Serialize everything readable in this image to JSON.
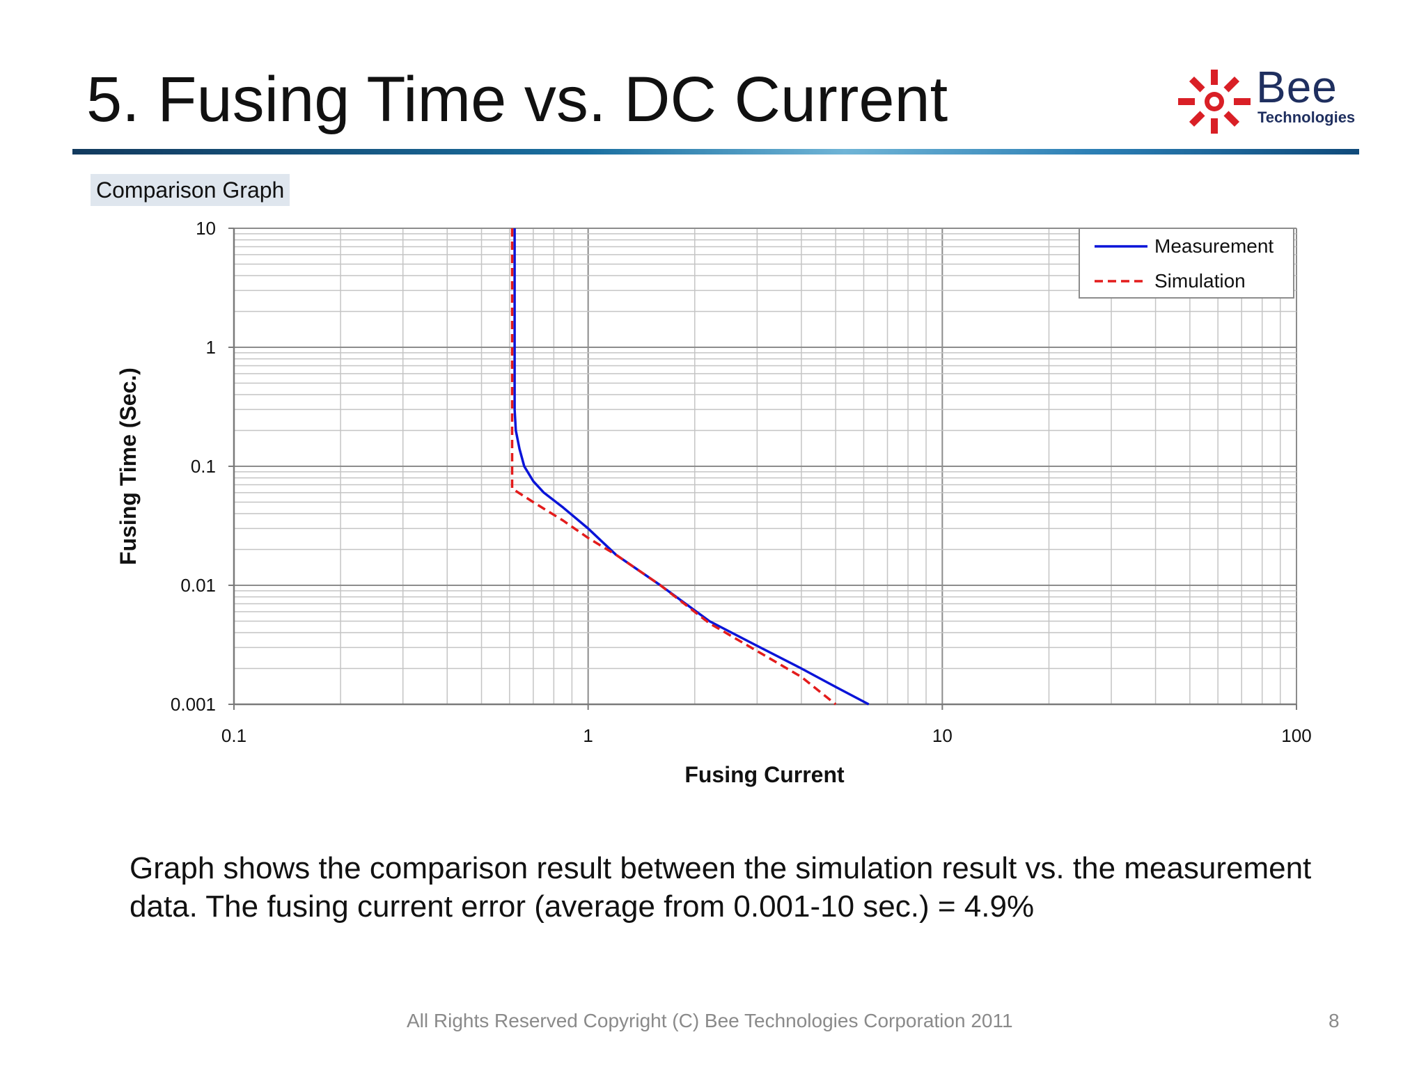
{
  "slide": {
    "title": "5. Fusing Time vs. DC Current",
    "section_label": "Comparison Graph",
    "description": "Graph shows the comparison result between the simulation result vs. the measurement data. The fusing current error (average from 0.001-10 sec.) = 4.9%",
    "footer": "All Rights Reserved Copyright (C) Bee Technologies Corporation 2011",
    "page_number": "8"
  },
  "logo": {
    "word": "Bee",
    "subtitle": "Technologies",
    "icon": "sunburst-icon",
    "colors": {
      "mark": "#d91f26",
      "text": "#1f2f5f"
    }
  },
  "chart_data": {
    "type": "line",
    "title": "",
    "xlabel": "Fusing Current",
    "ylabel": "Fusing Time (Sec.)",
    "x_scale": "log",
    "y_scale": "log",
    "xlim": [
      0.1,
      100
    ],
    "ylim": [
      0.001,
      10
    ],
    "x_ticks": [
      "0.1",
      "1",
      "10",
      "100"
    ],
    "y_ticks": [
      "0.001",
      "0.01",
      "0.1",
      "1",
      "10"
    ],
    "grid": true,
    "legend_position": "top-right",
    "series": [
      {
        "name": "Measurement",
        "color": "#0a14d8",
        "style": "solid",
        "x": [
          0.62,
          0.62,
          0.62,
          0.625,
          0.64,
          0.66,
          0.7,
          0.75,
          0.85,
          1.0,
          1.2,
          1.6,
          2.2,
          3.0,
          4.0,
          5.0,
          6.2
        ],
        "y": [
          10,
          1,
          0.3,
          0.2,
          0.14,
          0.1,
          0.075,
          0.06,
          0.045,
          0.03,
          0.018,
          0.01,
          0.005,
          0.0031,
          0.002,
          0.0014,
          0.001
        ]
      },
      {
        "name": "Simulation",
        "color": "#e31c1c",
        "style": "dashed",
        "x": [
          0.61,
          0.61,
          0.61,
          0.61,
          0.7,
          0.85,
          1.0,
          1.2,
          1.6,
          2.2,
          3.0,
          4.0,
          5.0
        ],
        "y": [
          10,
          1,
          0.2,
          0.065,
          0.05,
          0.035,
          0.025,
          0.018,
          0.01,
          0.0048,
          0.0028,
          0.0017,
          0.001
        ]
      }
    ]
  }
}
